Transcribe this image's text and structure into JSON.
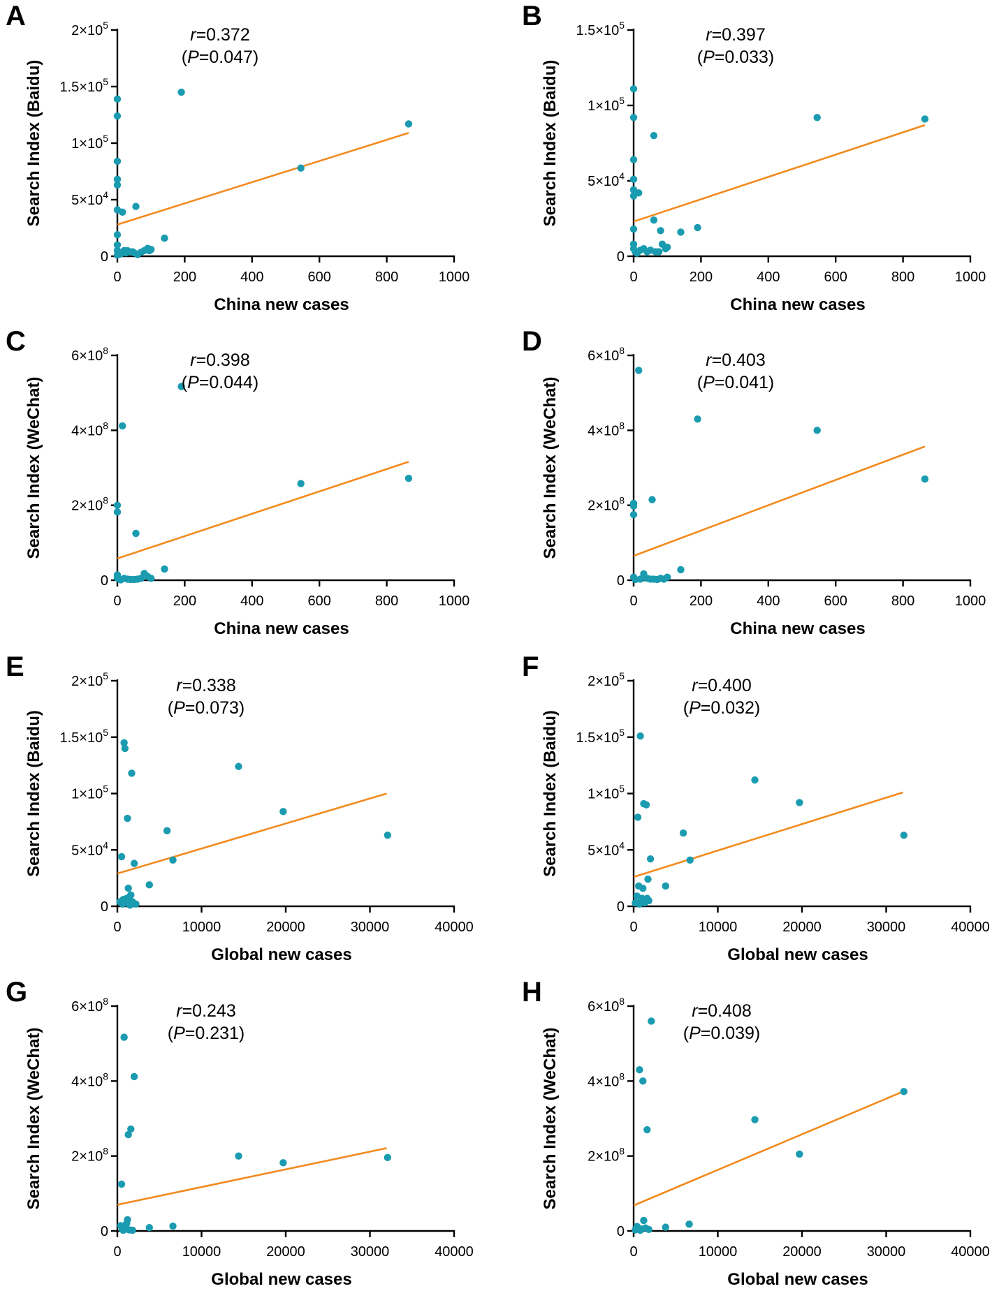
{
  "chart_data": [
    {
      "panel": "A",
      "type": "scatter",
      "xlabel": "China new cases",
      "ylabel": "Search Index (Baidu)",
      "xlim": [
        0,
        1000
      ],
      "ylim": [
        0,
        200000
      ],
      "x_ticks": [
        0,
        200,
        400,
        600,
        800,
        1000
      ],
      "x_tick_labels": [
        "0",
        "200",
        "400",
        "600",
        "800",
        "1000"
      ],
      "y_ticks": [
        0,
        50000,
        100000,
        150000,
        200000
      ],
      "y_tick_labels": [
        {
          "base": "0",
          "exp": ""
        },
        {
          "base": "5×10",
          "exp": "4"
        },
        {
          "base": "1×10",
          "exp": "5"
        },
        {
          "base": "1.5×10",
          "exp": "5"
        },
        {
          "base": "2×10",
          "exp": "5"
        }
      ],
      "stat_r": "=0.372",
      "stat_p_open": "(",
      "stat_p": "=0.047)",
      "fit": [
        [
          0,
          28000
        ],
        [
          865,
          109000
        ]
      ],
      "points": [
        [
          0,
          139000
        ],
        [
          0,
          124000
        ],
        [
          0,
          84000
        ],
        [
          0,
          68000
        ],
        [
          0,
          63000
        ],
        [
          0,
          41000
        ],
        [
          0,
          19000
        ],
        [
          0,
          10000
        ],
        [
          0,
          5000
        ],
        [
          0,
          1000
        ],
        [
          5,
          3000
        ],
        [
          10,
          2000
        ],
        [
          15,
          39000
        ],
        [
          20,
          5000
        ],
        [
          25,
          3000
        ],
        [
          30,
          5000
        ],
        [
          35,
          4000
        ],
        [
          45,
          4000
        ],
        [
          50,
          3000
        ],
        [
          55,
          44000
        ],
        [
          60,
          1500
        ],
        [
          70,
          3500
        ],
        [
          80,
          5000
        ],
        [
          90,
          7000
        ],
        [
          95,
          5000
        ],
        [
          100,
          6000
        ],
        [
          140,
          16000
        ],
        [
          190,
          145000
        ],
        [
          545,
          78000
        ],
        [
          865,
          117000
        ]
      ]
    },
    {
      "panel": "B",
      "type": "scatter",
      "xlabel": "China new cases",
      "ylabel": "Search Index (Baidu)",
      "xlim": [
        0,
        1000
      ],
      "ylim": [
        0,
        150000
      ],
      "x_ticks": [
        0,
        200,
        400,
        600,
        800,
        1000
      ],
      "x_tick_labels": [
        "0",
        "200",
        "400",
        "600",
        "800",
        "1000"
      ],
      "y_ticks": [
        0,
        50000,
        100000,
        150000
      ],
      "y_tick_labels": [
        {
          "base": "0",
          "exp": ""
        },
        {
          "base": "5×10",
          "exp": "4"
        },
        {
          "base": "1×10",
          "exp": "5"
        },
        {
          "base": "1.5×10",
          "exp": "5"
        }
      ],
      "stat_r": "=0.397",
      "stat_p_open": "(",
      "stat_p": "=0.033)",
      "fit": [
        [
          0,
          23000
        ],
        [
          865,
          87000
        ]
      ],
      "points": [
        [
          0,
          111000
        ],
        [
          0,
          92000
        ],
        [
          0,
          64000
        ],
        [
          0,
          51000
        ],
        [
          0,
          44000
        ],
        [
          0,
          40000
        ],
        [
          0,
          18000
        ],
        [
          0,
          8000
        ],
        [
          0,
          5000
        ],
        [
          5,
          3000
        ],
        [
          10,
          2000
        ],
        [
          15,
          42000
        ],
        [
          20,
          4000
        ],
        [
          30,
          5000
        ],
        [
          40,
          3000
        ],
        [
          50,
          4000
        ],
        [
          60,
          80000
        ],
        [
          60,
          24000
        ],
        [
          65,
          3000
        ],
        [
          75,
          3000
        ],
        [
          80,
          17000
        ],
        [
          85,
          8000
        ],
        [
          95,
          5000
        ],
        [
          100,
          6000
        ],
        [
          140,
          16000
        ],
        [
          190,
          19000
        ],
        [
          545,
          92000
        ],
        [
          865,
          91000
        ]
      ]
    },
    {
      "panel": "C",
      "type": "scatter",
      "xlabel": "China new cases",
      "ylabel": "Search Index (WeChat)",
      "xlim": [
        0,
        1000
      ],
      "ylim": [
        0,
        600000000
      ],
      "x_ticks": [
        0,
        200,
        400,
        600,
        800,
        1000
      ],
      "x_tick_labels": [
        "0",
        "200",
        "400",
        "600",
        "800",
        "1000"
      ],
      "y_ticks": [
        0,
        200000000,
        400000000,
        600000000
      ],
      "y_tick_labels": [
        {
          "base": "0",
          "exp": ""
        },
        {
          "base": "2×10",
          "exp": "8"
        },
        {
          "base": "4×10",
          "exp": "8"
        },
        {
          "base": "6×10",
          "exp": "8"
        }
      ],
      "stat_r": "=0.398",
      "stat_p_open": "(",
      "stat_p": "=0.044)",
      "fit": [
        [
          0,
          58000000
        ],
        [
          865,
          316000000
        ]
      ],
      "points": [
        [
          0,
          200000000
        ],
        [
          0,
          182000000
        ],
        [
          0,
          14000000
        ],
        [
          0,
          6000000
        ],
        [
          5,
          3000000
        ],
        [
          10,
          1000000
        ],
        [
          15,
          412000000
        ],
        [
          20,
          5000000
        ],
        [
          30,
          3000000
        ],
        [
          40,
          2000000
        ],
        [
          50,
          2000000
        ],
        [
          55,
          125000000
        ],
        [
          60,
          3000000
        ],
        [
          70,
          5000000
        ],
        [
          80,
          18000000
        ],
        [
          90,
          10000000
        ],
        [
          100,
          5000000
        ],
        [
          140,
          30000000
        ],
        [
          190,
          517000000
        ],
        [
          545,
          258000000
        ],
        [
          865,
          272000000
        ]
      ]
    },
    {
      "panel": "D",
      "type": "scatter",
      "xlabel": "China new cases",
      "ylabel": "Search Index (WeChat)",
      "xlim": [
        0,
        1000
      ],
      "ylim": [
        0,
        600000000
      ],
      "x_ticks": [
        0,
        200,
        400,
        600,
        800,
        1000
      ],
      "x_tick_labels": [
        "0",
        "200",
        "400",
        "600",
        "800",
        "1000"
      ],
      "y_ticks": [
        0,
        200000000,
        400000000,
        600000000
      ],
      "y_tick_labels": [
        {
          "base": "0",
          "exp": ""
        },
        {
          "base": "2×10",
          "exp": "8"
        },
        {
          "base": "4×10",
          "exp": "8"
        },
        {
          "base": "6×10",
          "exp": "8"
        }
      ],
      "stat_r": "=0.403",
      "stat_p_open": "(",
      "stat_p": "=0.041)",
      "fit": [
        [
          0,
          65000000
        ],
        [
          865,
          357000000
        ]
      ],
      "points": [
        [
          0,
          205000000
        ],
        [
          0,
          198000000
        ],
        [
          0,
          175000000
        ],
        [
          0,
          8000000
        ],
        [
          5,
          2000000
        ],
        [
          15,
          560000000
        ],
        [
          20,
          3000000
        ],
        [
          30,
          17000000
        ],
        [
          40,
          5000000
        ],
        [
          50,
          3000000
        ],
        [
          55,
          215000000
        ],
        [
          60,
          3000000
        ],
        [
          70,
          2000000
        ],
        [
          80,
          5000000
        ],
        [
          90,
          3000000
        ],
        [
          100,
          8000000
        ],
        [
          140,
          28000000
        ],
        [
          190,
          430000000
        ],
        [
          545,
          400000000
        ],
        [
          865,
          270000000
        ]
      ]
    },
    {
      "panel": "E",
      "type": "scatter",
      "xlabel": "Global new cases",
      "ylabel": "Search Index (Baidu)",
      "xlim": [
        0,
        40000
      ],
      "ylim": [
        0,
        200000
      ],
      "x_ticks": [
        0,
        10000,
        20000,
        30000,
        40000
      ],
      "x_tick_labels": [
        "0",
        "10000",
        "20000",
        "30000",
        "40000"
      ],
      "y_ticks": [
        0,
        50000,
        100000,
        150000,
        200000
      ],
      "y_tick_labels": [
        {
          "base": "0",
          "exp": ""
        },
        {
          "base": "5×10",
          "exp": "4"
        },
        {
          "base": "1×10",
          "exp": "5"
        },
        {
          "base": "1.5×10",
          "exp": "5"
        },
        {
          "base": "2×10",
          "exp": "5"
        }
      ],
      "stat_r": "=0.338",
      "stat_p_open": "(",
      "stat_p": "=0.073)",
      "fit": [
        [
          0,
          29000
        ],
        [
          32000,
          100000
        ]
      ],
      "points": [
        [
          300,
          4000
        ],
        [
          500,
          44000
        ],
        [
          600,
          2000
        ],
        [
          700,
          6000
        ],
        [
          800,
          145000
        ],
        [
          900,
          140000
        ],
        [
          1000,
          3000
        ],
        [
          1100,
          7000
        ],
        [
          1200,
          78000
        ],
        [
          1300,
          16000
        ],
        [
          1400,
          8000
        ],
        [
          1500,
          1000
        ],
        [
          1600,
          10000
        ],
        [
          1700,
          118000
        ],
        [
          1800,
          4000
        ],
        [
          2000,
          38000
        ],
        [
          2200,
          2000
        ],
        [
          3800,
          19000
        ],
        [
          5900,
          67000
        ],
        [
          6600,
          41000
        ],
        [
          14400,
          124000
        ],
        [
          19700,
          84000
        ],
        [
          32100,
          63000
        ]
      ]
    },
    {
      "panel": "F",
      "type": "scatter",
      "xlabel": "Global new cases",
      "ylabel": "Search Index (Baidu)",
      "xlim": [
        0,
        40000
      ],
      "ylim": [
        0,
        200000
      ],
      "x_ticks": [
        0,
        10000,
        20000,
        30000,
        40000
      ],
      "x_tick_labels": [
        "0",
        "10000",
        "20000",
        "30000",
        "40000"
      ],
      "y_ticks": [
        0,
        50000,
        100000,
        150000,
        200000
      ],
      "y_tick_labels": [
        {
          "base": "0",
          "exp": ""
        },
        {
          "base": "5×10",
          "exp": "4"
        },
        {
          "base": "1×10",
          "exp": "5"
        },
        {
          "base": "1.5×10",
          "exp": "5"
        },
        {
          "base": "2×10",
          "exp": "5"
        }
      ],
      "stat_r": "=0.400",
      "stat_p_open": "(",
      "stat_p": "=0.032)",
      "fit": [
        [
          0,
          26000
        ],
        [
          32000,
          101000
        ]
      ],
      "points": [
        [
          200,
          3000
        ],
        [
          400,
          9000
        ],
        [
          500,
          79000
        ],
        [
          600,
          18000
        ],
        [
          700,
          2000
        ],
        [
          800,
          151000
        ],
        [
          900,
          5000
        ],
        [
          1000,
          7000
        ],
        [
          1100,
          16000
        ],
        [
          1200,
          91000
        ],
        [
          1300,
          3000
        ],
        [
          1500,
          90000
        ],
        [
          1600,
          7000
        ],
        [
          1700,
          24000
        ],
        [
          1800,
          5000
        ],
        [
          2000,
          42000
        ],
        [
          3800,
          18000
        ],
        [
          5900,
          65000
        ],
        [
          6700,
          41000
        ],
        [
          14400,
          112000
        ],
        [
          19700,
          92000
        ],
        [
          32100,
          63000
        ]
      ]
    },
    {
      "panel": "G",
      "type": "scatter",
      "xlabel": "Global new cases",
      "ylabel": "Search Index (WeChat)",
      "xlim": [
        0,
        40000
      ],
      "ylim": [
        0,
        600000000
      ],
      "x_ticks": [
        0,
        10000,
        20000,
        30000,
        40000
      ],
      "x_tick_labels": [
        "0",
        "10000",
        "20000",
        "30000",
        "40000"
      ],
      "y_ticks": [
        0,
        200000000,
        400000000,
        600000000
      ],
      "y_tick_labels": [
        {
          "base": "0",
          "exp": ""
        },
        {
          "base": "2×10",
          "exp": "8"
        },
        {
          "base": "4×10",
          "exp": "8"
        },
        {
          "base": "6×10",
          "exp": "8"
        }
      ],
      "stat_r": "=0.243",
      "stat_p_open": "(",
      "stat_p": "=0.231)",
      "fit": [
        [
          0,
          70000000
        ],
        [
          32000,
          221000000
        ]
      ],
      "points": [
        [
          400,
          14000000
        ],
        [
          500,
          125000000
        ],
        [
          600,
          4000000
        ],
        [
          700,
          2000000
        ],
        [
          800,
          517000000
        ],
        [
          900,
          8000000
        ],
        [
          1000,
          5000000
        ],
        [
          1100,
          20000000
        ],
        [
          1200,
          30000000
        ],
        [
          1300,
          257000000
        ],
        [
          1400,
          3000000
        ],
        [
          1600,
          272000000
        ],
        [
          1800,
          2000000
        ],
        [
          2000,
          412000000
        ],
        [
          3800,
          9000000
        ],
        [
          6600,
          13000000
        ],
        [
          14400,
          200000000
        ],
        [
          19700,
          182000000
        ],
        [
          32100,
          196000000
        ]
      ]
    },
    {
      "panel": "H",
      "type": "scatter",
      "xlabel": "Global new cases",
      "ylabel": "Search Index (WeChat)",
      "xlim": [
        0,
        40000
      ],
      "ylim": [
        0,
        600000000
      ],
      "x_ticks": [
        0,
        10000,
        20000,
        30000,
        40000
      ],
      "x_tick_labels": [
        "0",
        "10000",
        "20000",
        "30000",
        "40000"
      ],
      "y_ticks": [
        0,
        200000000,
        400000000,
        600000000
      ],
      "y_tick_labels": [
        {
          "base": "0",
          "exp": ""
        },
        {
          "base": "2×10",
          "exp": "8"
        },
        {
          "base": "4×10",
          "exp": "8"
        },
        {
          "base": "6×10",
          "exp": "8"
        }
      ],
      "stat_r": "=0.408",
      "stat_p_open": "(",
      "stat_p": "=0.039)",
      "fit": [
        [
          0,
          68000000
        ],
        [
          32000,
          372000000
        ]
      ],
      "points": [
        [
          200,
          3000000
        ],
        [
          400,
          12000000
        ],
        [
          600,
          7000000
        ],
        [
          700,
          430000000
        ],
        [
          800,
          2000000
        ],
        [
          900,
          5000000
        ],
        [
          1100,
          400000000
        ],
        [
          1200,
          28000000
        ],
        [
          1400,
          8000000
        ],
        [
          1600,
          270000000
        ],
        [
          1800,
          4000000
        ],
        [
          2100,
          560000000
        ],
        [
          3800,
          10000000
        ],
        [
          6600,
          18000000
        ],
        [
          14400,
          297000000
        ],
        [
          19700,
          205000000
        ],
        [
          32100,
          372000000
        ]
      ]
    }
  ]
}
